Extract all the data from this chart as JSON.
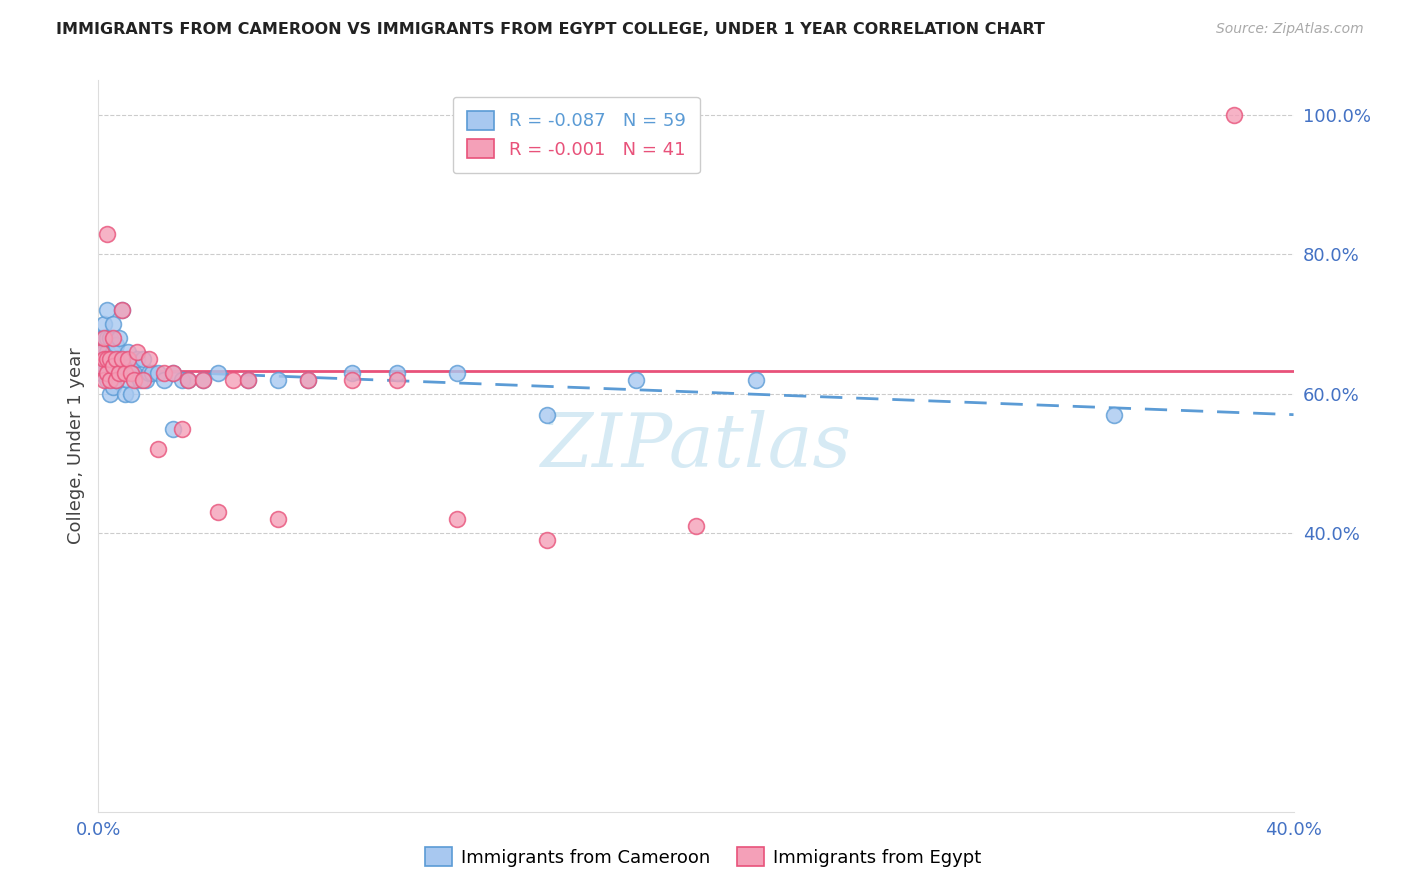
{
  "title": "IMMIGRANTS FROM CAMEROON VS IMMIGRANTS FROM EGYPT COLLEGE, UNDER 1 YEAR CORRELATION CHART",
  "source": "Source: ZipAtlas.com",
  "ylabel": "College, Under 1 year",
  "legend_label1": "R = -0.087   N = 59",
  "legend_label2": "R = -0.001   N = 41",
  "color_cameroon": "#A8C8F0",
  "color_egypt": "#F4A0B8",
  "color_trendline_cameroon": "#5B9BD5",
  "color_trendline_egypt": "#E8527A",
  "color_axis_labels": "#4472C4",
  "xlim": [
    0.0,
    0.4
  ],
  "ylim": [
    0.0,
    1.05
  ],
  "xtick_vals": [
    0.0,
    0.05,
    0.1,
    0.15,
    0.2,
    0.25,
    0.3,
    0.35,
    0.4
  ],
  "ytick_vals_right": [
    0.4,
    0.6,
    0.8,
    1.0
  ],
  "ytick_labels_right": [
    "40.0%",
    "60.0%",
    "80.0%",
    "100.0%"
  ],
  "cameroon_x": [
    0.001,
    0.001,
    0.001,
    0.002,
    0.002,
    0.002,
    0.002,
    0.003,
    0.003,
    0.003,
    0.003,
    0.003,
    0.004,
    0.004,
    0.004,
    0.004,
    0.005,
    0.005,
    0.005,
    0.005,
    0.006,
    0.006,
    0.006,
    0.007,
    0.007,
    0.007,
    0.008,
    0.008,
    0.009,
    0.009,
    0.01,
    0.01,
    0.011,
    0.011,
    0.012,
    0.013,
    0.014,
    0.015,
    0.016,
    0.017,
    0.018,
    0.02,
    0.022,
    0.025,
    0.025,
    0.028,
    0.03,
    0.035,
    0.04,
    0.05,
    0.06,
    0.07,
    0.085,
    0.1,
    0.12,
    0.15,
    0.18,
    0.22,
    0.34
  ],
  "cameroon_y": [
    0.63,
    0.66,
    0.68,
    0.64,
    0.66,
    0.68,
    0.7,
    0.62,
    0.64,
    0.66,
    0.68,
    0.72,
    0.6,
    0.63,
    0.65,
    0.68,
    0.61,
    0.63,
    0.66,
    0.7,
    0.62,
    0.65,
    0.67,
    0.63,
    0.65,
    0.68,
    0.64,
    0.72,
    0.6,
    0.65,
    0.62,
    0.66,
    0.6,
    0.64,
    0.63,
    0.65,
    0.62,
    0.65,
    0.62,
    0.63,
    0.63,
    0.63,
    0.62,
    0.63,
    0.55,
    0.62,
    0.62,
    0.62,
    0.63,
    0.62,
    0.62,
    0.62,
    0.63,
    0.63,
    0.63,
    0.57,
    0.62,
    0.62,
    0.57
  ],
  "egypt_x": [
    0.001,
    0.001,
    0.002,
    0.002,
    0.002,
    0.003,
    0.003,
    0.003,
    0.004,
    0.004,
    0.005,
    0.005,
    0.006,
    0.006,
    0.007,
    0.008,
    0.008,
    0.009,
    0.01,
    0.011,
    0.012,
    0.013,
    0.015,
    0.017,
    0.02,
    0.022,
    0.025,
    0.028,
    0.03,
    0.035,
    0.04,
    0.045,
    0.05,
    0.06,
    0.07,
    0.085,
    0.1,
    0.12,
    0.15,
    0.2,
    0.38
  ],
  "egypt_y": [
    0.64,
    0.66,
    0.62,
    0.65,
    0.68,
    0.63,
    0.65,
    0.83,
    0.62,
    0.65,
    0.64,
    0.68,
    0.62,
    0.65,
    0.63,
    0.65,
    0.72,
    0.63,
    0.65,
    0.63,
    0.62,
    0.66,
    0.62,
    0.65,
    0.52,
    0.63,
    0.63,
    0.55,
    0.62,
    0.62,
    0.43,
    0.62,
    0.62,
    0.42,
    0.62,
    0.62,
    0.62,
    0.42,
    0.39,
    0.41,
    1.0
  ],
  "watermark": "ZIPatlas",
  "watermark_color": "#BBDDEE",
  "background_color": "#FFFFFF",
  "grid_color": "#CCCCCC"
}
